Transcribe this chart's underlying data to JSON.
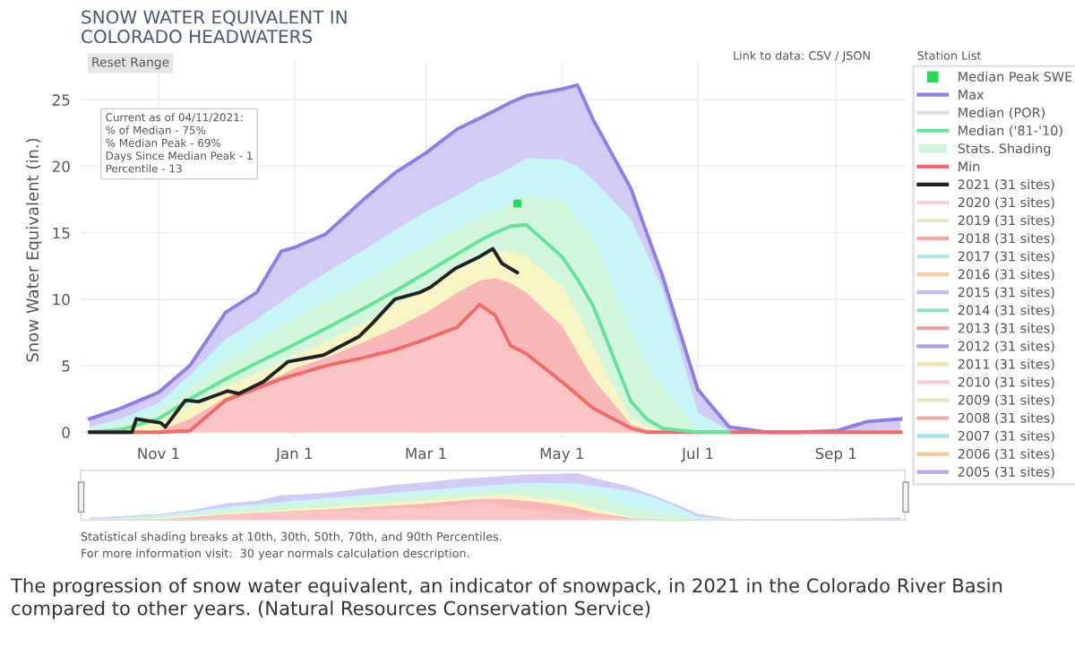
{
  "chart_data": {
    "type": "line",
    "title": "SNOW WATER EQUIVALENT IN\nCOLORADO HEADWATERS",
    "ylabel": "Snow Water Equivalent (in.)",
    "x": [
      "2020-10-01",
      "2020-10-15",
      "2020-11-01",
      "2020-11-15",
      "2020-12-01",
      "2020-12-15",
      "2020-12-26",
      "2021-01-01",
      "2021-01-15",
      "2021-02-01",
      "2021-02-15",
      "2021-03-01",
      "2021-03-15",
      "2021-03-25",
      "2021-04-01",
      "2021-04-08",
      "2021-04-15",
      "2021-05-01",
      "2021-05-08",
      "2021-05-15",
      "2021-06-01",
      "2021-06-08",
      "2021-06-15",
      "2021-07-01",
      "2021-07-15",
      "2021-08-01",
      "2021-08-15",
      "2021-09-01",
      "2021-09-05",
      "2021-09-15",
      "2021-09-30"
    ],
    "xlim": [
      "2020-09-27",
      "2021-10-02"
    ],
    "xticks": [
      {
        "value": "2020-11-01",
        "label": "Nov 1"
      },
      {
        "value": "2021-01-01",
        "label": "Jan 1"
      },
      {
        "value": "2021-03-01",
        "label": "Mar 1"
      },
      {
        "value": "2021-05-01",
        "label": "May 1"
      },
      {
        "value": "2021-07-01",
        "label": "Jul 1"
      },
      {
        "value": "2021-09-01",
        "label": "Sep 1"
      }
    ],
    "ylim": [
      -0.4,
      27.8
    ],
    "yticks": [
      0,
      5,
      10,
      15,
      20,
      25
    ],
    "grid": true,
    "legend": "right",
    "series": [
      {
        "name": "Median Peak SWE",
        "type": "scatter",
        "marker": "square",
        "color": "#22dd55",
        "x": [
          "2021-04-11"
        ],
        "values": [
          17.2
        ]
      },
      {
        "name": "Max",
        "type": "area",
        "line_style": "solid",
        "color": "#8f7ee8",
        "values": [
          1.0,
          1.8,
          3.0,
          5.0,
          9.0,
          10.5,
          13.6,
          13.9,
          14.9,
          17.5,
          19.5,
          21.0,
          22.8,
          23.6,
          24.2,
          24.8,
          25.3,
          25.8,
          26.1,
          23.5,
          18.3,
          15.0,
          11.8,
          3.2,
          0.4,
          0,
          0,
          0.1,
          0.3,
          0.8,
          1.0
        ]
      },
      {
        "name": "Median (POR)",
        "color": "#dcdcdc",
        "values": [
          null,
          null,
          null,
          null,
          null,
          null,
          null,
          null,
          null,
          null,
          null,
          null,
          null,
          null,
          null,
          null,
          null,
          null,
          null,
          null,
          null,
          null,
          null,
          null,
          null,
          null,
          null,
          null,
          null,
          null,
          null
        ]
      },
      {
        "name": "Median ('81-'10)",
        "color": "#66e39a",
        "values": [
          0,
          0.2,
          1.0,
          2.5,
          4.0,
          5.2,
          6.1,
          6.6,
          7.8,
          9.3,
          10.6,
          12.0,
          13.4,
          14.4,
          15.0,
          15.5,
          15.6,
          13.2,
          11.5,
          9.5,
          2.3,
          1.0,
          0.3,
          0,
          0,
          null,
          null,
          null,
          null,
          null,
          null
        ]
      },
      {
        "type": "area",
        "color": "#c8f5f5",
        "values": [
          0.4,
          1.0,
          2.2,
          4.3,
          7.0,
          8.5,
          9.8,
          10.5,
          12.0,
          13.7,
          15.2,
          16.6,
          17.8,
          18.8,
          19.3,
          19.9,
          20.6,
          20.5,
          20.0,
          19.0,
          16.0,
          13.5,
          10.8,
          1.5,
          0.1,
          0,
          0,
          0,
          0,
          0,
          0
        ]
      },
      {
        "name": "Stats. Shading",
        "type": "area",
        "color": "#d2f7dc",
        "values": [
          0.2,
          0.6,
          1.6,
          3.3,
          5.5,
          6.8,
          7.9,
          8.6,
          9.8,
          11.3,
          12.7,
          14.0,
          15.3,
          16.2,
          16.7,
          17.2,
          17.8,
          17.3,
          16.0,
          14.5,
          7.5,
          5.0,
          3.5,
          0.2,
          0,
          0,
          0,
          0,
          0,
          0,
          0
        ]
      },
      {
        "type": "area",
        "color": "#f7f5c4",
        "values": [
          0,
          0.1,
          0.8,
          2.0,
          3.4,
          4.4,
          5.2,
          5.8,
          6.8,
          8.2,
          9.5,
          10.8,
          12.2,
          13.0,
          13.6,
          13.6,
          13.2,
          11.0,
          9.0,
          6.5,
          1.0,
          0.4,
          0.1,
          0,
          0,
          0,
          0,
          0,
          0,
          0,
          0
        ]
      },
      {
        "type": "area",
        "color": "#f9b8b8",
        "values": [
          0,
          0,
          0.1,
          1.0,
          2.6,
          3.6,
          4.3,
          4.8,
          5.6,
          6.8,
          7.8,
          9.0,
          10.5,
          11.4,
          11.6,
          11.2,
          10.5,
          8.0,
          6.0,
          4.0,
          0.6,
          0.2,
          0,
          0,
          0,
          0,
          0,
          0,
          0,
          0,
          0
        ]
      },
      {
        "name": "Min",
        "type": "area",
        "line_style": "solid",
        "color": "#f26b6b",
        "values": [
          0,
          0,
          0,
          0.1,
          2.4,
          3.3,
          4.0,
          4.3,
          5.0,
          5.6,
          6.2,
          7.0,
          7.9,
          9.6,
          8.8,
          6.5,
          5.9,
          3.8,
          2.8,
          1.8,
          0.3,
          0,
          0,
          0,
          0,
          0,
          0,
          0,
          0,
          0,
          0
        ]
      },
      {
        "name": "2021 (31 sites)",
        "color": "#222222",
        "x": [
          "2020-10-01",
          "2020-10-20",
          "2020-10-22",
          "2020-11-02",
          "2020-11-04",
          "2020-11-13",
          "2020-11-19",
          "2020-12-02",
          "2020-12-07",
          "2020-12-18",
          "2020-12-29",
          "2021-01-14",
          "2021-01-22",
          "2021-01-30",
          "2021-02-05",
          "2021-02-15",
          "2021-02-26",
          "2021-03-03",
          "2021-03-14",
          "2021-03-25",
          "2021-03-31",
          "2021-04-04",
          "2021-04-11"
        ],
        "values": [
          0,
          0,
          1.0,
          0.7,
          0.4,
          2.4,
          2.3,
          3.1,
          2.9,
          3.8,
          5.3,
          5.8,
          6.5,
          7.2,
          8.2,
          10.0,
          10.5,
          10.9,
          12.3,
          13.2,
          13.8,
          12.7,
          12.0
        ]
      },
      {
        "name": "2020 (31 sites)",
        "color": "#f5d0e0",
        "values": [
          null,
          null,
          null,
          null,
          null,
          null,
          null,
          null,
          null,
          null,
          null,
          null,
          null,
          null,
          null,
          null,
          null,
          null,
          null,
          null,
          null,
          null,
          null,
          null,
          null,
          null,
          null,
          null,
          null,
          null,
          null
        ]
      },
      {
        "name": "2019 (31 sites)",
        "color": "#e3ecc0",
        "values": [
          null,
          null,
          null,
          null,
          null,
          null,
          null,
          null,
          null,
          null,
          null,
          null,
          null,
          null,
          null,
          null,
          null,
          null,
          null,
          null,
          null,
          null,
          null,
          null,
          null,
          null,
          null,
          null,
          null,
          null,
          null
        ]
      },
      {
        "name": "2018 (31 sites)",
        "color": "#f5a8a8",
        "values": [
          null,
          null,
          null,
          null,
          null,
          null,
          null,
          null,
          null,
          null,
          null,
          null,
          null,
          null,
          null,
          null,
          null,
          null,
          null,
          null,
          null,
          null,
          null,
          null,
          null,
          null,
          null,
          null,
          null,
          null,
          null
        ]
      },
      {
        "name": "2017 (31 sites)",
        "color": "#a8e8f0",
        "values": [
          null,
          null,
          null,
          null,
          null,
          null,
          null,
          null,
          null,
          null,
          null,
          null,
          null,
          null,
          null,
          null,
          null,
          null,
          null,
          null,
          null,
          null,
          null,
          null,
          null,
          null,
          null,
          null,
          null,
          null,
          null
        ]
      },
      {
        "name": "2016 (31 sites)",
        "color": "#f8c8a8",
        "values": [
          null,
          null,
          null,
          null,
          null,
          null,
          null,
          null,
          null,
          null,
          null,
          null,
          null,
          null,
          null,
          null,
          null,
          null,
          null,
          null,
          null,
          null,
          null,
          null,
          null,
          null,
          null,
          null,
          null,
          null,
          null
        ]
      },
      {
        "name": "2015 (31 sites)",
        "color": "#c8b8f0",
        "values": [
          null,
          null,
          null,
          null,
          null,
          null,
          null,
          null,
          null,
          null,
          null,
          null,
          null,
          null,
          null,
          null,
          null,
          null,
          null,
          null,
          null,
          null,
          null,
          null,
          null,
          null,
          null,
          null,
          null,
          null,
          null
        ]
      },
      {
        "name": "2014 (31 sites)",
        "color": "#90e0c0",
        "values": [
          null,
          null,
          null,
          null,
          null,
          null,
          null,
          null,
          null,
          null,
          null,
          null,
          null,
          null,
          null,
          null,
          null,
          null,
          null,
          null,
          null,
          null,
          null,
          null,
          null,
          null,
          null,
          null,
          null,
          null,
          null
        ]
      },
      {
        "name": "2013 (31 sites)",
        "color": "#f09a9a",
        "values": [
          null,
          null,
          null,
          null,
          null,
          null,
          null,
          null,
          null,
          null,
          null,
          null,
          null,
          null,
          null,
          null,
          null,
          null,
          null,
          null,
          null,
          null,
          null,
          null,
          null,
          null,
          null,
          null,
          null,
          null,
          null
        ]
      },
      {
        "name": "2012 (31 sites)",
        "color": "#a8a0e8",
        "values": [
          null,
          null,
          null,
          null,
          null,
          null,
          null,
          null,
          null,
          null,
          null,
          null,
          null,
          null,
          null,
          null,
          null,
          null,
          null,
          null,
          null,
          null,
          null,
          null,
          null,
          null,
          null,
          null,
          null,
          null,
          null
        ]
      },
      {
        "name": "2011 (31 sites)",
        "color": "#f0e8a0",
        "values": [
          null,
          null,
          null,
          null,
          null,
          null,
          null,
          null,
          null,
          null,
          null,
          null,
          null,
          null,
          null,
          null,
          null,
          null,
          null,
          null,
          null,
          null,
          null,
          null,
          null,
          null,
          null,
          null,
          null,
          null,
          null
        ]
      },
      {
        "name": "2010 (31 sites)",
        "color": "#f0c8e0",
        "values": [
          null,
          null,
          null,
          null,
          null,
          null,
          null,
          null,
          null,
          null,
          null,
          null,
          null,
          null,
          null,
          null,
          null,
          null,
          null,
          null,
          null,
          null,
          null,
          null,
          null,
          null,
          null,
          null,
          null,
          null,
          null
        ]
      },
      {
        "name": "2009 (31 sites)",
        "color": "#e0e8c0",
        "values": [
          null,
          null,
          null,
          null,
          null,
          null,
          null,
          null,
          null,
          null,
          null,
          null,
          null,
          null,
          null,
          null,
          null,
          null,
          null,
          null,
          null,
          null,
          null,
          null,
          null,
          null,
          null,
          null,
          null,
          null,
          null
        ]
      },
      {
        "name": "2008 (31 sites)",
        "color": "#f0a8a8",
        "values": [
          null,
          null,
          null,
          null,
          null,
          null,
          null,
          null,
          null,
          null,
          null,
          null,
          null,
          null,
          null,
          null,
          null,
          null,
          null,
          null,
          null,
          null,
          null,
          null,
          null,
          null,
          null,
          null,
          null,
          null,
          null
        ]
      },
      {
        "name": "2007 (31 sites)",
        "color": "#a0e0f0",
        "values": [
          null,
          null,
          null,
          null,
          null,
          null,
          null,
          null,
          null,
          null,
          null,
          null,
          null,
          null,
          null,
          null,
          null,
          null,
          null,
          null,
          null,
          null,
          null,
          null,
          null,
          null,
          null,
          null,
          null,
          null,
          null
        ]
      },
      {
        "name": "2006 (31 sites)",
        "color": "#f8c8a0",
        "values": [
          null,
          null,
          null,
          null,
          null,
          null,
          null,
          null,
          null,
          null,
          null,
          null,
          null,
          null,
          null,
          null,
          null,
          null,
          null,
          null,
          null,
          null,
          null,
          null,
          null,
          null,
          null,
          null,
          null,
          null,
          null
        ]
      },
      {
        "name": "2005 (31 sites)",
        "color": "#b8a8e8",
        "values": [
          null,
          null,
          null,
          null,
          null,
          null,
          null,
          null,
          null,
          null,
          null,
          null,
          null,
          null,
          null,
          null,
          null,
          null,
          null,
          null,
          null,
          null,
          null,
          null,
          null,
          null,
          null,
          null,
          null,
          null,
          null
        ]
      }
    ],
    "annotations": [
      "Current as of 04/11/2021:\n% of Median - 75%\n% Median Peak - 69%\nDays Since Median Peak - 1\nPercentile - 13",
      "Reset Range",
      "Link to data: CSV / JSON",
      "Station List",
      "Statistical shading breaks at 10th, 30th, 50th, 70th, and 90th Percentiles.",
      "For more information visit:  30 year normals calculation description.",
      "The progression of snow water equivalent, an indicator of snowpack, in 2021 in the Colorado River Basin compared to other years. (Natural Resources Conservation Service)"
    ]
  }
}
